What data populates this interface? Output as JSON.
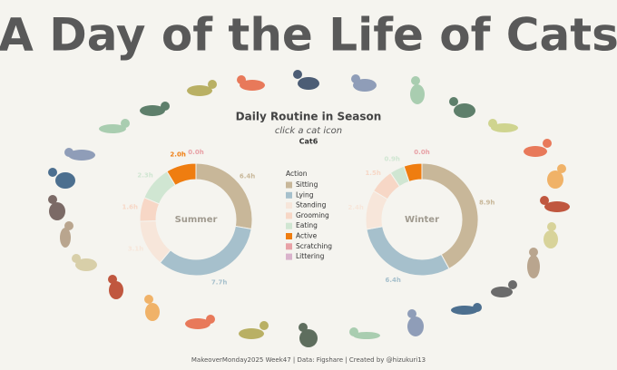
{
  "chart_data": {
    "type": "donut",
    "title": "A Day of the Life of Cats",
    "subtitle": "Daily Routine in Season",
    "instruction": "click a cat icon",
    "selected": "Cat6",
    "legend_title": "Action",
    "categories": [
      "Sitting",
      "Lying",
      "Standing",
      "Grooming",
      "Eating",
      "Active",
      "Scratching",
      "Littering"
    ],
    "colors": [
      "#c8b799",
      "#a6c0cc",
      "#f7e6da",
      "#f7d7c6",
      "#d0e6d2",
      "#ef7d10",
      "#e8a1a6",
      "#d9b3cc"
    ],
    "series": [
      {
        "name": "Summer",
        "values": [
          6.4,
          7.7,
          3.1,
          1.6,
          2.3,
          2.0,
          0.0,
          0.0
        ],
        "value_labels": [
          "6.4h",
          "7.7h",
          "3.1h",
          "1.6h",
          "2.3h",
          "2.0h",
          "0.0h",
          null
        ]
      },
      {
        "name": "Winter",
        "values": [
          8.9,
          6.4,
          2.4,
          1.5,
          0.9,
          1.1,
          0.0,
          0.0
        ],
        "value_labels": [
          "8.9h",
          "6.4h",
          "2.4h",
          "1.5h",
          "0.9h",
          null,
          "0.0h",
          null
        ]
      }
    ],
    "footer": "MakeoverMonday2025 Week47 | Data: Figshare | Created by @hizukuri13"
  }
}
